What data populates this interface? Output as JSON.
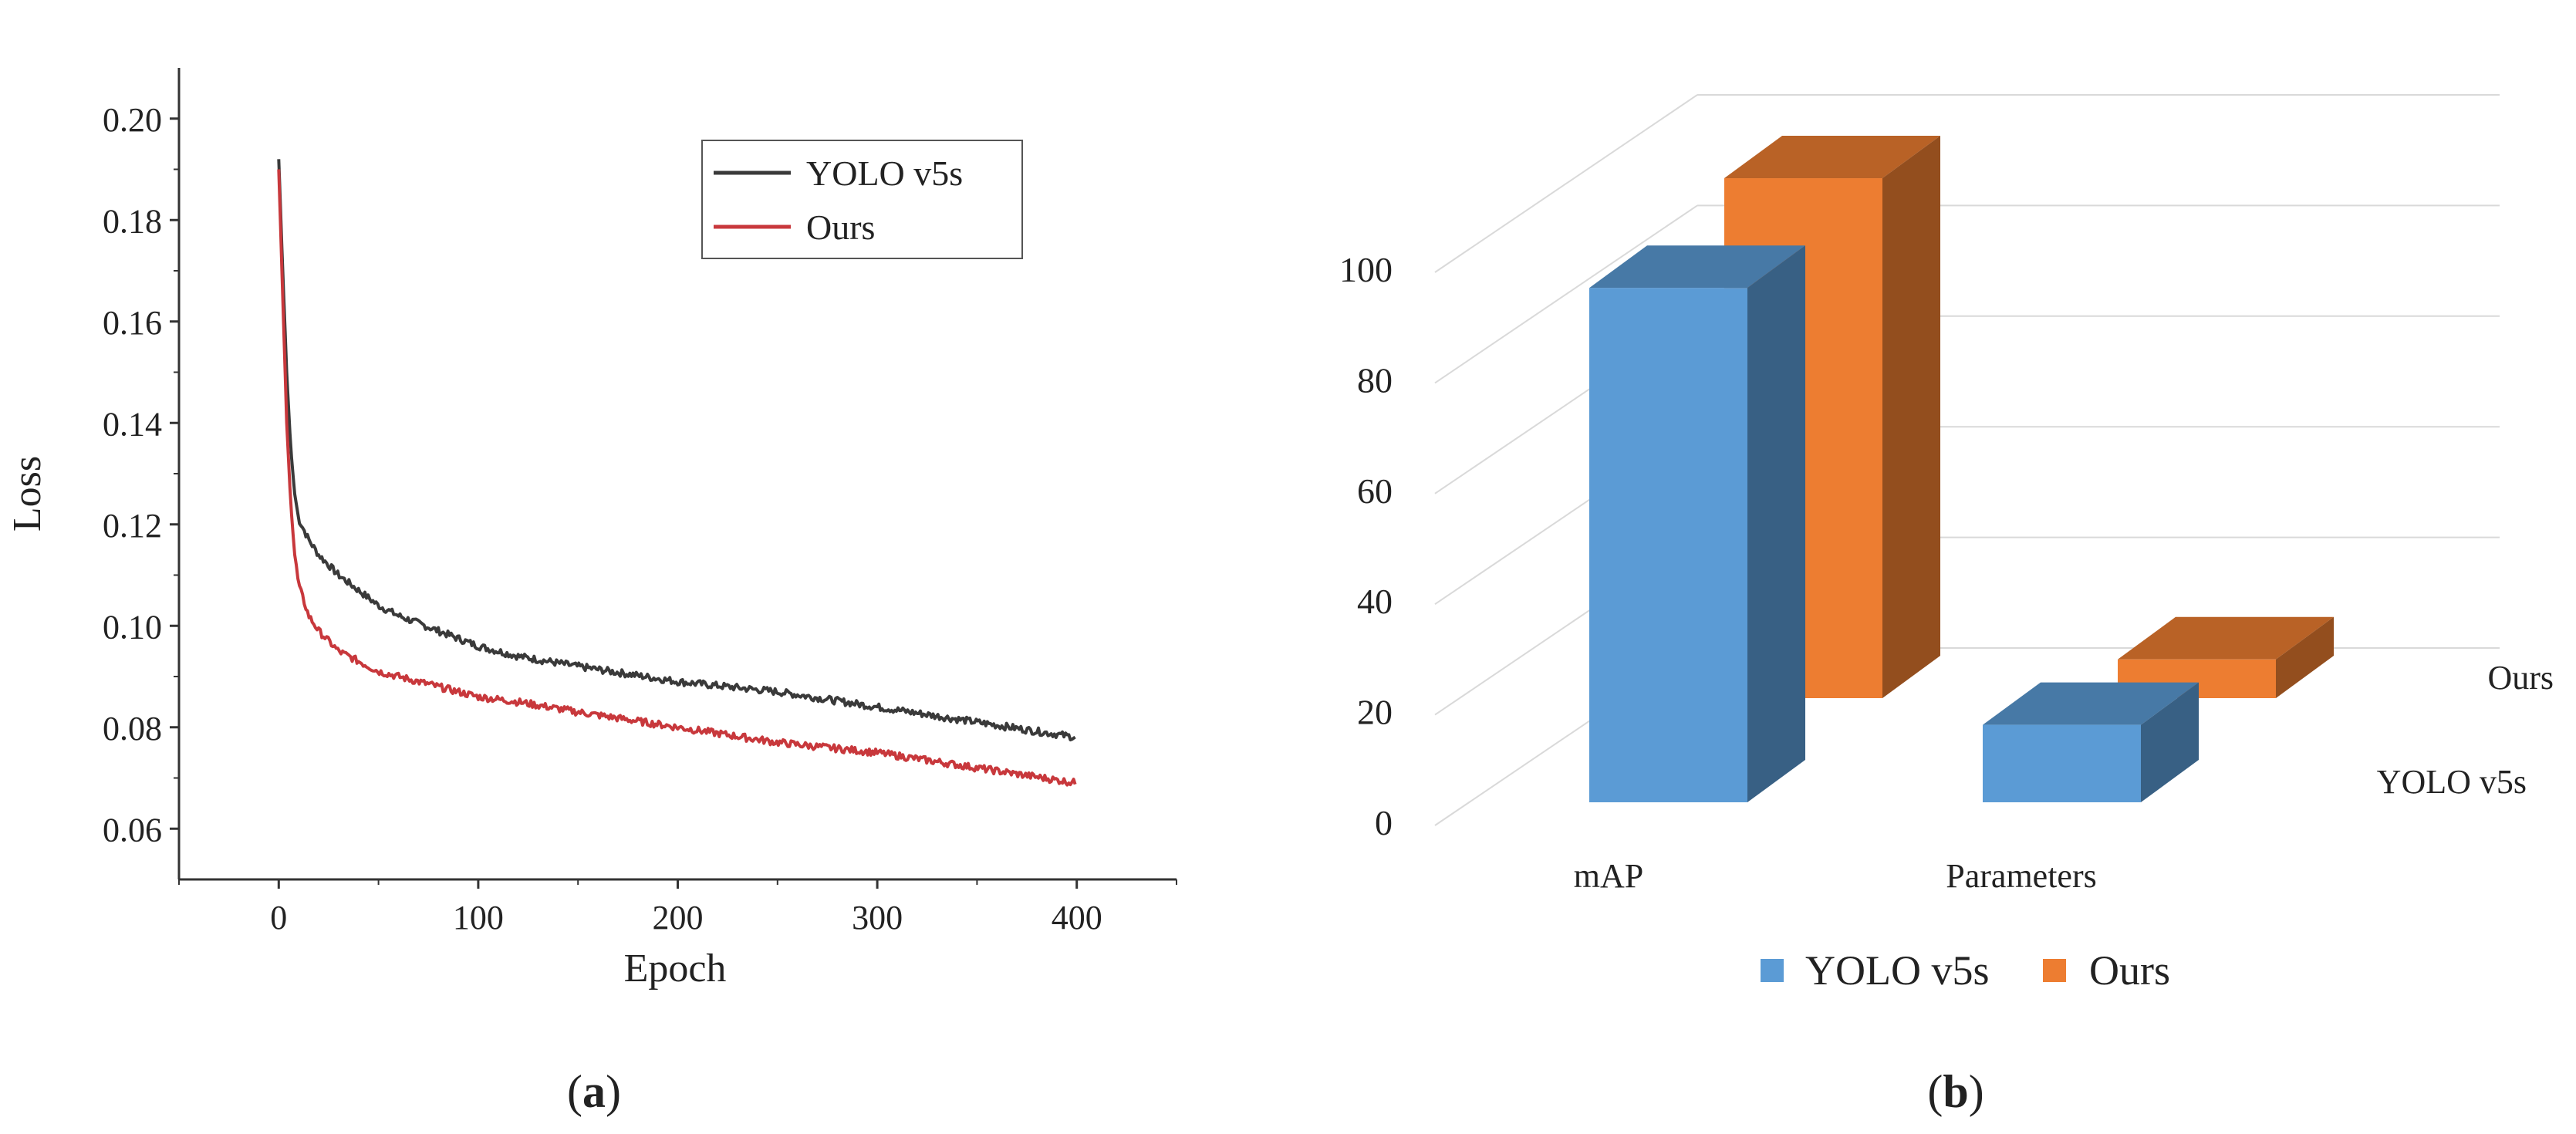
{
  "chart_data": [
    {
      "type": "line",
      "panel_label": "(a)",
      "panel_letter": "a",
      "xlabel": "Epoch",
      "ylabel": "Loss",
      "xlim": [
        -50,
        450
      ],
      "ylim": [
        0.05,
        0.21
      ],
      "xticks": [
        0,
        100,
        200,
        300,
        400
      ],
      "yticks": [
        0.06,
        0.08,
        0.1,
        0.12,
        0.14,
        0.16,
        0.18,
        0.2
      ],
      "xtick_labels": [
        "0",
        "100",
        "200",
        "300",
        "400"
      ],
      "ytick_labels": [
        "0.06",
        "0.08",
        "0.10",
        "0.12",
        "0.14",
        "0.16",
        "0.18",
        "0.20"
      ],
      "legend_position": "top-right",
      "series": [
        {
          "name": "YOLO v5s",
          "color": "#3a3a3a",
          "x": [
            0,
            2,
            4,
            6,
            8,
            10,
            15,
            20,
            30,
            40,
            50,
            60,
            80,
            100,
            120,
            150,
            200,
            250,
            300,
            350,
            400
          ],
          "y": [
            0.192,
            0.17,
            0.15,
            0.135,
            0.126,
            0.121,
            0.117,
            0.114,
            0.11,
            0.107,
            0.104,
            0.102,
            0.099,
            0.096,
            0.094,
            0.092,
            0.089,
            0.087,
            0.084,
            0.081,
            0.078
          ]
        },
        {
          "name": "Ours",
          "color": "#c8383c",
          "x": [
            0,
            2,
            4,
            6,
            8,
            10,
            15,
            20,
            30,
            40,
            50,
            60,
            80,
            100,
            120,
            150,
            200,
            250,
            300,
            350,
            400
          ],
          "y": [
            0.19,
            0.165,
            0.14,
            0.124,
            0.114,
            0.108,
            0.102,
            0.099,
            0.095,
            0.093,
            0.091,
            0.09,
            0.088,
            0.086,
            0.085,
            0.083,
            0.08,
            0.077,
            0.075,
            0.072,
            0.069
          ]
        }
      ]
    },
    {
      "type": "bar",
      "style": "3d",
      "panel_label": "(b)",
      "panel_letter": "b",
      "categories": [
        "mAP",
        "Parameters"
      ],
      "yticks": [
        0,
        20,
        40,
        60,
        80,
        100
      ],
      "ytick_labels": [
        "0",
        "20",
        "40",
        "60",
        "80",
        "100"
      ],
      "ylim": [
        0,
        100
      ],
      "depth_labels": [
        "Ours",
        "YOLO v5s"
      ],
      "legend_position": "bottom-center",
      "series": [
        {
          "name": "YOLO v5s",
          "values": [
            93,
            14
          ],
          "color": "#5b9bd5"
        },
        {
          "name": "Ours",
          "values": [
            94,
            7
          ],
          "color": "#ed7d31"
        }
      ]
    }
  ]
}
